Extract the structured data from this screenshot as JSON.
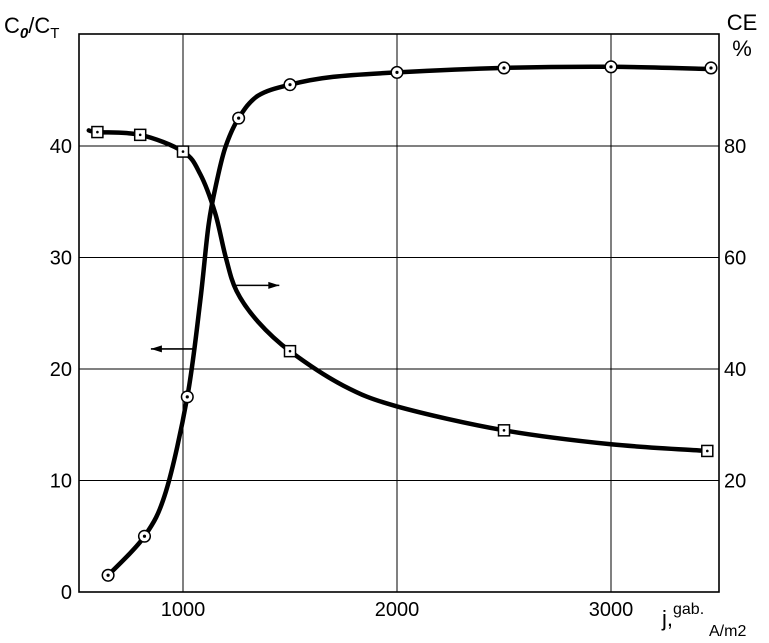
{
  "chart_data": {
    "type": "line",
    "left_axis_label": {
      "main": "C",
      "sub1": "0",
      "sep": "/C",
      "sub2": "T"
    },
    "right_axis_label": {
      "line1": "CE",
      "line2": "%"
    },
    "x_axis_label": {
      "main": "j,",
      "sup": "gab.",
      "sub": "A/m2"
    },
    "x_ticks": [
      1000,
      2000,
      3000
    ],
    "x_tick_labels": [
      "1000",
      "2000",
      "3000"
    ],
    "y_left_ticks": [
      0,
      10,
      20,
      30,
      40
    ],
    "y_left_tick_labels": [
      "0",
      "10",
      "20",
      "30",
      "40"
    ],
    "y_right_ticks": [
      20,
      40,
      60,
      80
    ],
    "y_right_tick_labels": [
      "20",
      "40",
      "60",
      "80"
    ],
    "xlim": [
      600,
      3500
    ],
    "ylim_left": [
      0,
      50
    ],
    "ylim_right": [
      0,
      100
    ],
    "grid": true,
    "series": [
      {
        "axis": "left",
        "marker": "circle",
        "points": [
          [
            650,
            1.5
          ],
          [
            820,
            5
          ],
          [
            1020,
            17.5
          ],
          [
            1260,
            42.5
          ],
          [
            1500,
            45.5
          ],
          [
            2000,
            46.6
          ],
          [
            2500,
            47
          ],
          [
            3000,
            47.1
          ],
          [
            3480,
            47
          ]
        ],
        "curve": [
          [
            650,
            1.5
          ],
          [
            820,
            5
          ],
          [
            920,
            9
          ],
          [
            1020,
            17.5
          ],
          [
            1080,
            26
          ],
          [
            1120,
            33
          ],
          [
            1160,
            37
          ],
          [
            1200,
            40
          ],
          [
            1260,
            42.5
          ],
          [
            1350,
            44.5
          ],
          [
            1500,
            45.5
          ],
          [
            1700,
            46.2
          ],
          [
            2000,
            46.6
          ],
          [
            2500,
            47
          ],
          [
            3000,
            47.1
          ],
          [
            3480,
            46.9
          ]
        ]
      },
      {
        "axis": "right",
        "marker": "square",
        "points": [
          [
            600,
            82.5
          ],
          [
            800,
            82
          ],
          [
            1000,
            79
          ],
          [
            1500,
            43.2
          ],
          [
            2500,
            29
          ],
          [
            3450,
            25.3
          ]
        ],
        "curve": [
          [
            560,
            82.8
          ],
          [
            600,
            82.5
          ],
          [
            800,
            82
          ],
          [
            1000,
            79
          ],
          [
            1080,
            75
          ],
          [
            1150,
            68
          ],
          [
            1200,
            60
          ],
          [
            1250,
            54
          ],
          [
            1350,
            48.5
          ],
          [
            1500,
            43.2
          ],
          [
            1750,
            37
          ],
          [
            2000,
            33.3
          ],
          [
            2500,
            29
          ],
          [
            3000,
            26.5
          ],
          [
            3450,
            25.3
          ]
        ]
      }
    ],
    "arrows": [
      {
        "direction": "left",
        "from": [
          1050,
          21.8
        ],
        "to": [
          850,
          21.8
        ]
      },
      {
        "direction": "right",
        "from": [
          1240,
          27.5
        ],
        "to": [
          1450,
          27.5
        ]
      }
    ]
  }
}
